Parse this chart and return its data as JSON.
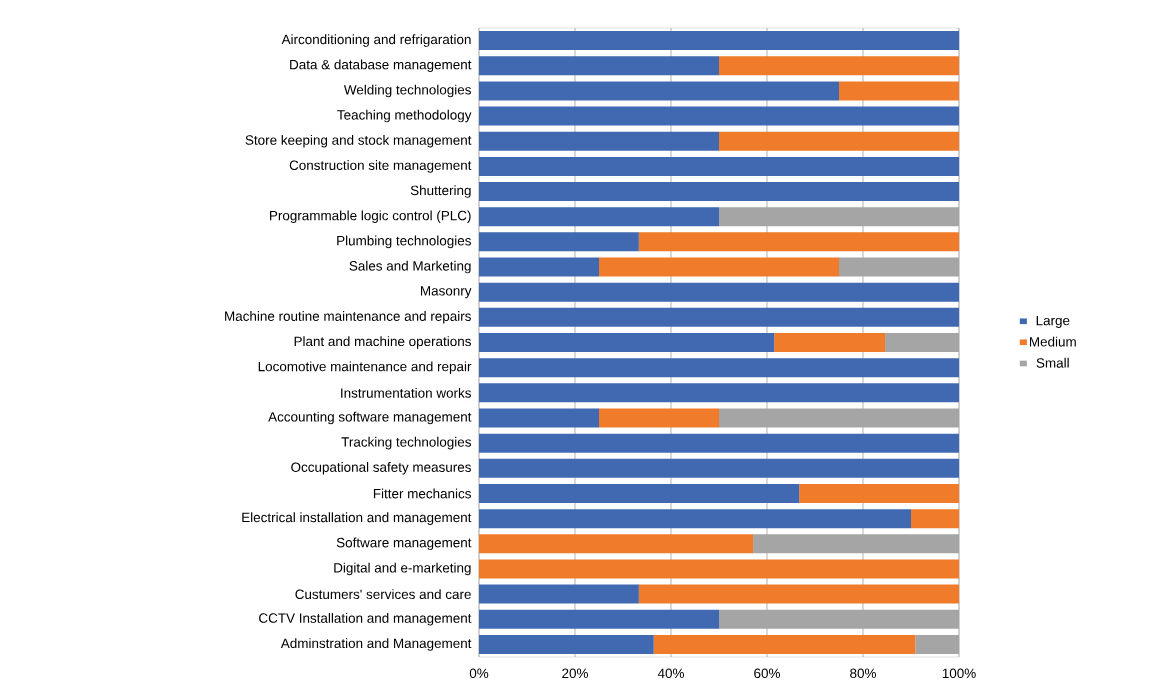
{
  "chart_data": {
    "type": "bar",
    "orientation": "horizontal",
    "stacked": true,
    "categories": [
      "Airconditioning and refrigaration",
      "Data & database management",
      "Welding technologies",
      "Teaching methodology",
      "Store keeping and stock management",
      "Construction site management",
      "Shuttering",
      "Programmable logic control (PLC)",
      "Plumbing technologies",
      "Sales and Marketing",
      "Masonry",
      "Machine routine maintenance and repairs",
      "Plant and machine operations",
      "Locomotive maintenance and repair",
      "Instrumentation works",
      "Accounting software management",
      "Tracking technologies",
      "Occupational safety measures",
      "Fitter mechanics",
      "Electrical installation and management",
      "Software management",
      "Digital and e-marketing",
      "Custumers' services and care",
      "CCTV Installation and management",
      "Adminstration and Management"
    ],
    "series": [
      {
        "name": "Large",
        "color": "#4169b1",
        "values": [
          100,
          50,
          75,
          100,
          50,
          100,
          100,
          50,
          33.3,
          25,
          100,
          100,
          61.5,
          100,
          100,
          25,
          100,
          100,
          66.7,
          90,
          0,
          0,
          33.3,
          50,
          36.4
        ]
      },
      {
        "name": "Medium",
        "color": "#f07b2a",
        "values": [
          0,
          50,
          25,
          0,
          50,
          0,
          0,
          0,
          66.7,
          50,
          0,
          0,
          23.1,
          0,
          0,
          25,
          0,
          0,
          33.3,
          10,
          57.1,
          100,
          66.7,
          0,
          54.5
        ]
      },
      {
        "name": "Small",
        "color": "#a5a5a5",
        "values": [
          0,
          0,
          0,
          0,
          0,
          0,
          0,
          50,
          0,
          25,
          0,
          0,
          15.4,
          0,
          0,
          50,
          0,
          0,
          0,
          0,
          42.9,
          0,
          0,
          50,
          9.1
        ]
      }
    ],
    "xlim": [
      0,
      100
    ],
    "xticks": [
      {
        "value": 0,
        "label": "0%"
      },
      {
        "value": 20,
        "label": "20%"
      },
      {
        "value": 40,
        "label": "40%"
      },
      {
        "value": 60,
        "label": "60%"
      },
      {
        "value": 80,
        "label": "80%"
      },
      {
        "value": 100,
        "label": "100%"
      }
    ],
    "grid": "x",
    "legend": "right"
  }
}
